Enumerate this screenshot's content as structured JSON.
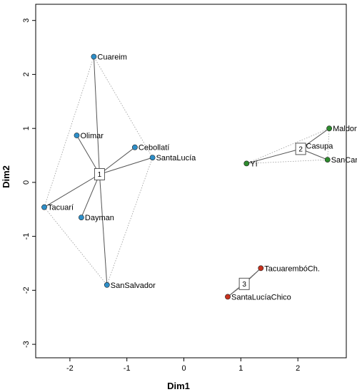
{
  "chart_data": {
    "type": "scatter",
    "xlabel": "Dim1",
    "ylabel": "Dim2",
    "xlim": [
      -2.6,
      2.85
    ],
    "ylim": [
      -3.25,
      3.3
    ],
    "xticks": [
      -2,
      -1,
      0,
      1,
      2
    ],
    "yticks": [
      -3,
      -2,
      -1,
      0,
      1,
      2,
      3
    ],
    "tick_labels_x": [
      "-2",
      "-1",
      "0",
      "1",
      "2"
    ],
    "tick_labels_y": [
      "-3",
      "-2",
      "-1",
      "0",
      "1",
      "2",
      "3"
    ],
    "grid": false,
    "legend": "none",
    "clusters": [
      {
        "label": "1",
        "center": [
          -1.48,
          0.15
        ],
        "color": "#2E8FC9",
        "points": [
          {
            "name": "Cuareim",
            "x": -1.58,
            "y": 2.33
          },
          {
            "name": "Olimar",
            "x": -1.88,
            "y": 0.87
          },
          {
            "name": "Cebollatí",
            "x": -0.86,
            "y": 0.65
          },
          {
            "name": "SantaLucía",
            "x": -0.55,
            "y": 0.46
          },
          {
            "name": "Tacuarí",
            "x": -2.45,
            "y": -0.46
          },
          {
            "name": "Dayman",
            "x": -1.8,
            "y": -0.65
          },
          {
            "name": "SanSalvador",
            "x": -1.35,
            "y": -1.9
          }
        ]
      },
      {
        "label": "2",
        "center": [
          2.05,
          0.62
        ],
        "color": "#2E8B2E",
        "points": [
          {
            "name": "Maldonado",
            "x": 2.55,
            "y": 1.0
          },
          {
            "name": "Casupa",
            "x": 2.08,
            "y": 0.68
          },
          {
            "name": "SanCarlos",
            "x": 2.52,
            "y": 0.42
          },
          {
            "name": "Yí",
            "x": 1.1,
            "y": 0.35
          }
        ]
      },
      {
        "label": "3",
        "center": [
          1.06,
          -1.88
        ],
        "color": "#C8321E",
        "points": [
          {
            "name": "TacuarembóCh.",
            "x": 1.35,
            "y": -1.59
          },
          {
            "name": "SantaLucíaChico",
            "x": 0.77,
            "y": -2.12
          }
        ]
      }
    ]
  }
}
